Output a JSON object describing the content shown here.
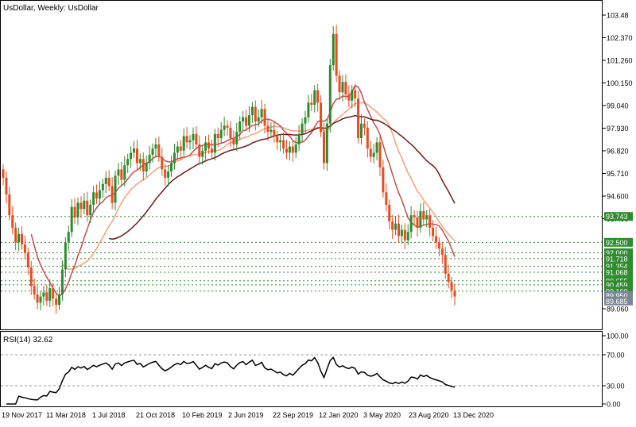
{
  "main_chart": {
    "title": "UsDollar, Weekly:  UsDollar",
    "y_ticks": [
      "103.48",
      "102.370",
      "101.260",
      "100.150",
      "99.040",
      "97.930",
      "96.820",
      "95.710",
      "94.600",
      "93.490",
      "89.060"
    ],
    "levels": [
      {
        "value": 93.743,
        "label": "93.743"
      },
      {
        "value": 92.5,
        "label": "92.500"
      },
      {
        "value": 92.0,
        "label": "92.000"
      },
      {
        "value": 91.718,
        "label": "91.718"
      },
      {
        "value": 91.354,
        "label": "91.354"
      },
      {
        "value": 91.068,
        "label": "91.068"
      },
      {
        "value": 90.655,
        "label": "90.655"
      },
      {
        "value": 90.459,
        "label": "90.459"
      },
      {
        "value": 90.16,
        "label": "90.160"
      }
    ],
    "price_tags": [
      {
        "value": 89.95,
        "label": "89.950"
      },
      {
        "value": 89.685,
        "label": "89.685"
      }
    ]
  },
  "rsi_panel": {
    "title": "RSI(14) 32.62",
    "y_ticks": [
      "100.00",
      "70.00",
      "30.00",
      "0.00"
    ]
  },
  "x_axis": {
    "labels": [
      "19 Nov 2017",
      "11 Mar 2018",
      "1 Jul 2018",
      "21 Oct 2018",
      "10 Feb 2019",
      "2 Jun 2019",
      "22 Sep 2019",
      "12 Jan 2020",
      "3 May 2020",
      "23 Aug 2020",
      "13 Dec 2020"
    ]
  },
  "colors": {
    "bull": "#2e8b2e",
    "bear": "#e84c1e",
    "ma_fast": "#f4a07a",
    "ma_mid": "#c0504d",
    "ma_slow": "#6b1a1a",
    "level_line": "#2e8b2e",
    "level_tag": "#2e8b2e",
    "price_tag": "#7b8796",
    "rsi_line": "#000000"
  },
  "chart_data": {
    "type": "candlestick",
    "x_start": "2017-11-19",
    "x_end": "2020-12-13",
    "y_range": [
      88.4,
      103.9
    ],
    "close": [
      95.6,
      94.8,
      93.8,
      93.2,
      92.5,
      92.9,
      92.4,
      92.0,
      91.3,
      90.4,
      90.0,
      89.6,
      89.9,
      90.1,
      89.7,
      90.3,
      89.8,
      89.5,
      90.0,
      91.2,
      92.5,
      93.0,
      94.2,
      93.7,
      94.4,
      94.1,
      94.5,
      93.8,
      94.3,
      94.9,
      94.6,
      95.0,
      95.3,
      95.6,
      95.2,
      94.4,
      95.7,
      96.0,
      95.5,
      96.2,
      96.5,
      96.8,
      97.0,
      96.3,
      96.5,
      95.9,
      96.3,
      96.7,
      97.0,
      97.2,
      96.6,
      96.0,
      95.6,
      95.9,
      96.3,
      96.8,
      97.1,
      96.9,
      97.6,
      97.3,
      97.4,
      97.7,
      97.2,
      96.6,
      96.9,
      97.3,
      97.0,
      96.8,
      97.7,
      97.5,
      97.9,
      98.1,
      98.0,
      97.5,
      97.2,
      97.8,
      98.3,
      98.5,
      98.1,
      98.6,
      99.0,
      98.3,
      98.5,
      98.9,
      98.1,
      97.8,
      97.9,
      97.6,
      97.3,
      97.4,
      97.0,
      96.8,
      97.1,
      96.8,
      97.2,
      97.7,
      98.2,
      98.5,
      99.2,
      99.1,
      99.8,
      99.2,
      97.8,
      96.3,
      98.2,
      101.0,
      102.5,
      100.5,
      99.7,
      100.2,
      99.6,
      99.3,
      99.8,
      99.4,
      97.5,
      98.2,
      98.0,
      97.0,
      96.6,
      96.8,
      97.3,
      96.1,
      94.9,
      94.3,
      93.5,
      93.1,
      93.4,
      92.8,
      93.1,
      92.6,
      93.0,
      93.8,
      93.7,
      93.2,
      94.0,
      93.6,
      93.8,
      93.2,
      92.8,
      92.5,
      92.2,
      91.9,
      91.0,
      90.6,
      90.2,
      89.9
    ]
  }
}
